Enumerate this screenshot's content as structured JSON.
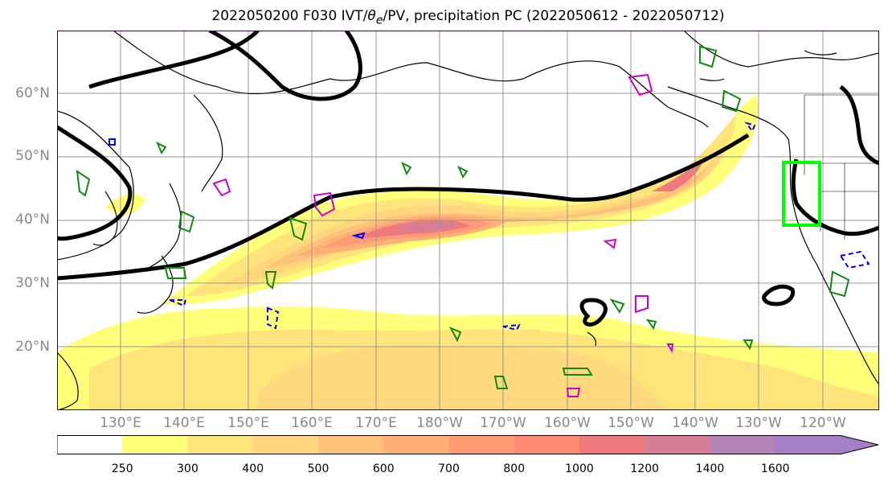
{
  "title": {
    "prefix": "2022050200 F030 IVT/",
    "theta": "θ",
    "theta_sub": "e",
    "suffix": "/PV, precipitation PC (2022050612 - 2022050712)"
  },
  "lat_labels": [
    "60°N",
    "50°N",
    "40°N",
    "30°N",
    "20°N"
  ],
  "lon_labels": [
    "130°E",
    "140°E",
    "150°E",
    "160°E",
    "170°E",
    "180°W",
    "170°W",
    "160°W",
    "150°W",
    "140°W",
    "130°W",
    "120°W"
  ],
  "colorbar": {
    "ticks": [
      "250",
      "300",
      "400",
      "500",
      "600",
      "700",
      "800",
      "1000",
      "1200",
      "1400",
      "1600"
    ],
    "colors": [
      "#ffffff",
      "#ffff7a",
      "#ffe47c",
      "#ffd67d",
      "#ffc27a",
      "#ffb077",
      "#ff9b74",
      "#ff8a72",
      "#ef7a7c",
      "#d87d98",
      "#b583b8",
      "#a57fc7"
    ]
  },
  "colors": {
    "ivt_outline": "#000000",
    "precip_pos": "#118811",
    "precip_neg": "#0000ee",
    "pv_magenta": "#cc00cc",
    "highlight_box": "#00ff00",
    "coast": "#000000",
    "grid": "#999999"
  }
}
